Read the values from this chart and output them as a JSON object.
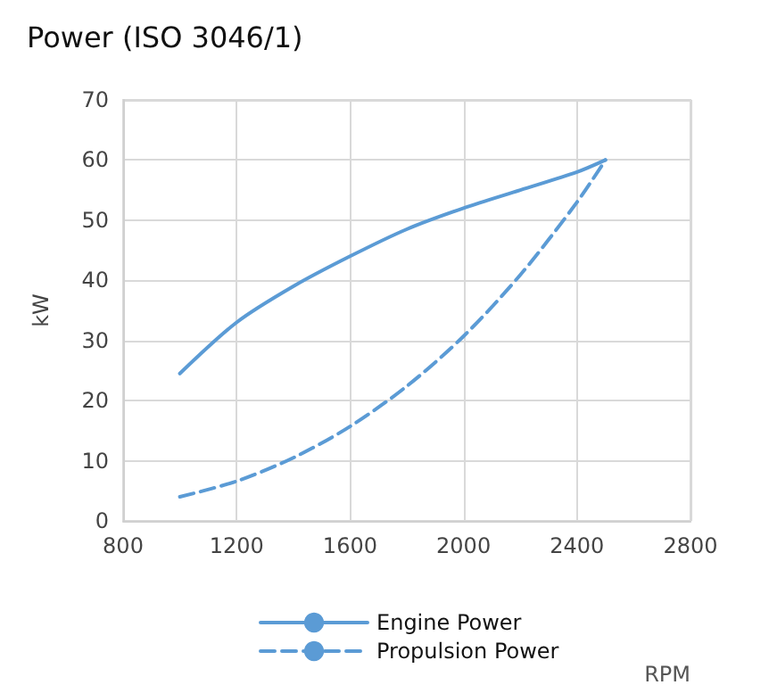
{
  "chart_data": {
    "type": "line",
    "title": "Power (ISO 3046/1)",
    "xlabel": "RPM",
    "ylabel": "kW",
    "x": [
      1000,
      1200,
      1400,
      1600,
      1800,
      2000,
      2200,
      2400,
      2500
    ],
    "series": [
      {
        "name": "Engine Power",
        "color": "#5b9bd5",
        "line_style": "solid",
        "values": [
          24.5,
          33,
          39,
          44,
          48.5,
          52,
          55,
          58,
          60
        ]
      },
      {
        "name": "Propulsion Power",
        "color": "#5b9bd5",
        "line_style": "dashed",
        "values": [
          4,
          6.6,
          10.5,
          15.7,
          22.4,
          30.7,
          40.9,
          53,
          60
        ]
      }
    ],
    "xlim": [
      800,
      2800
    ],
    "xticks": [
      800,
      1200,
      1600,
      2000,
      2400,
      2800
    ],
    "ylim": [
      0,
      70
    ],
    "yticks": [
      0,
      10,
      20,
      30,
      40,
      50,
      60,
      70
    ],
    "grid": true,
    "legend": "bottom",
    "marker": "none"
  }
}
